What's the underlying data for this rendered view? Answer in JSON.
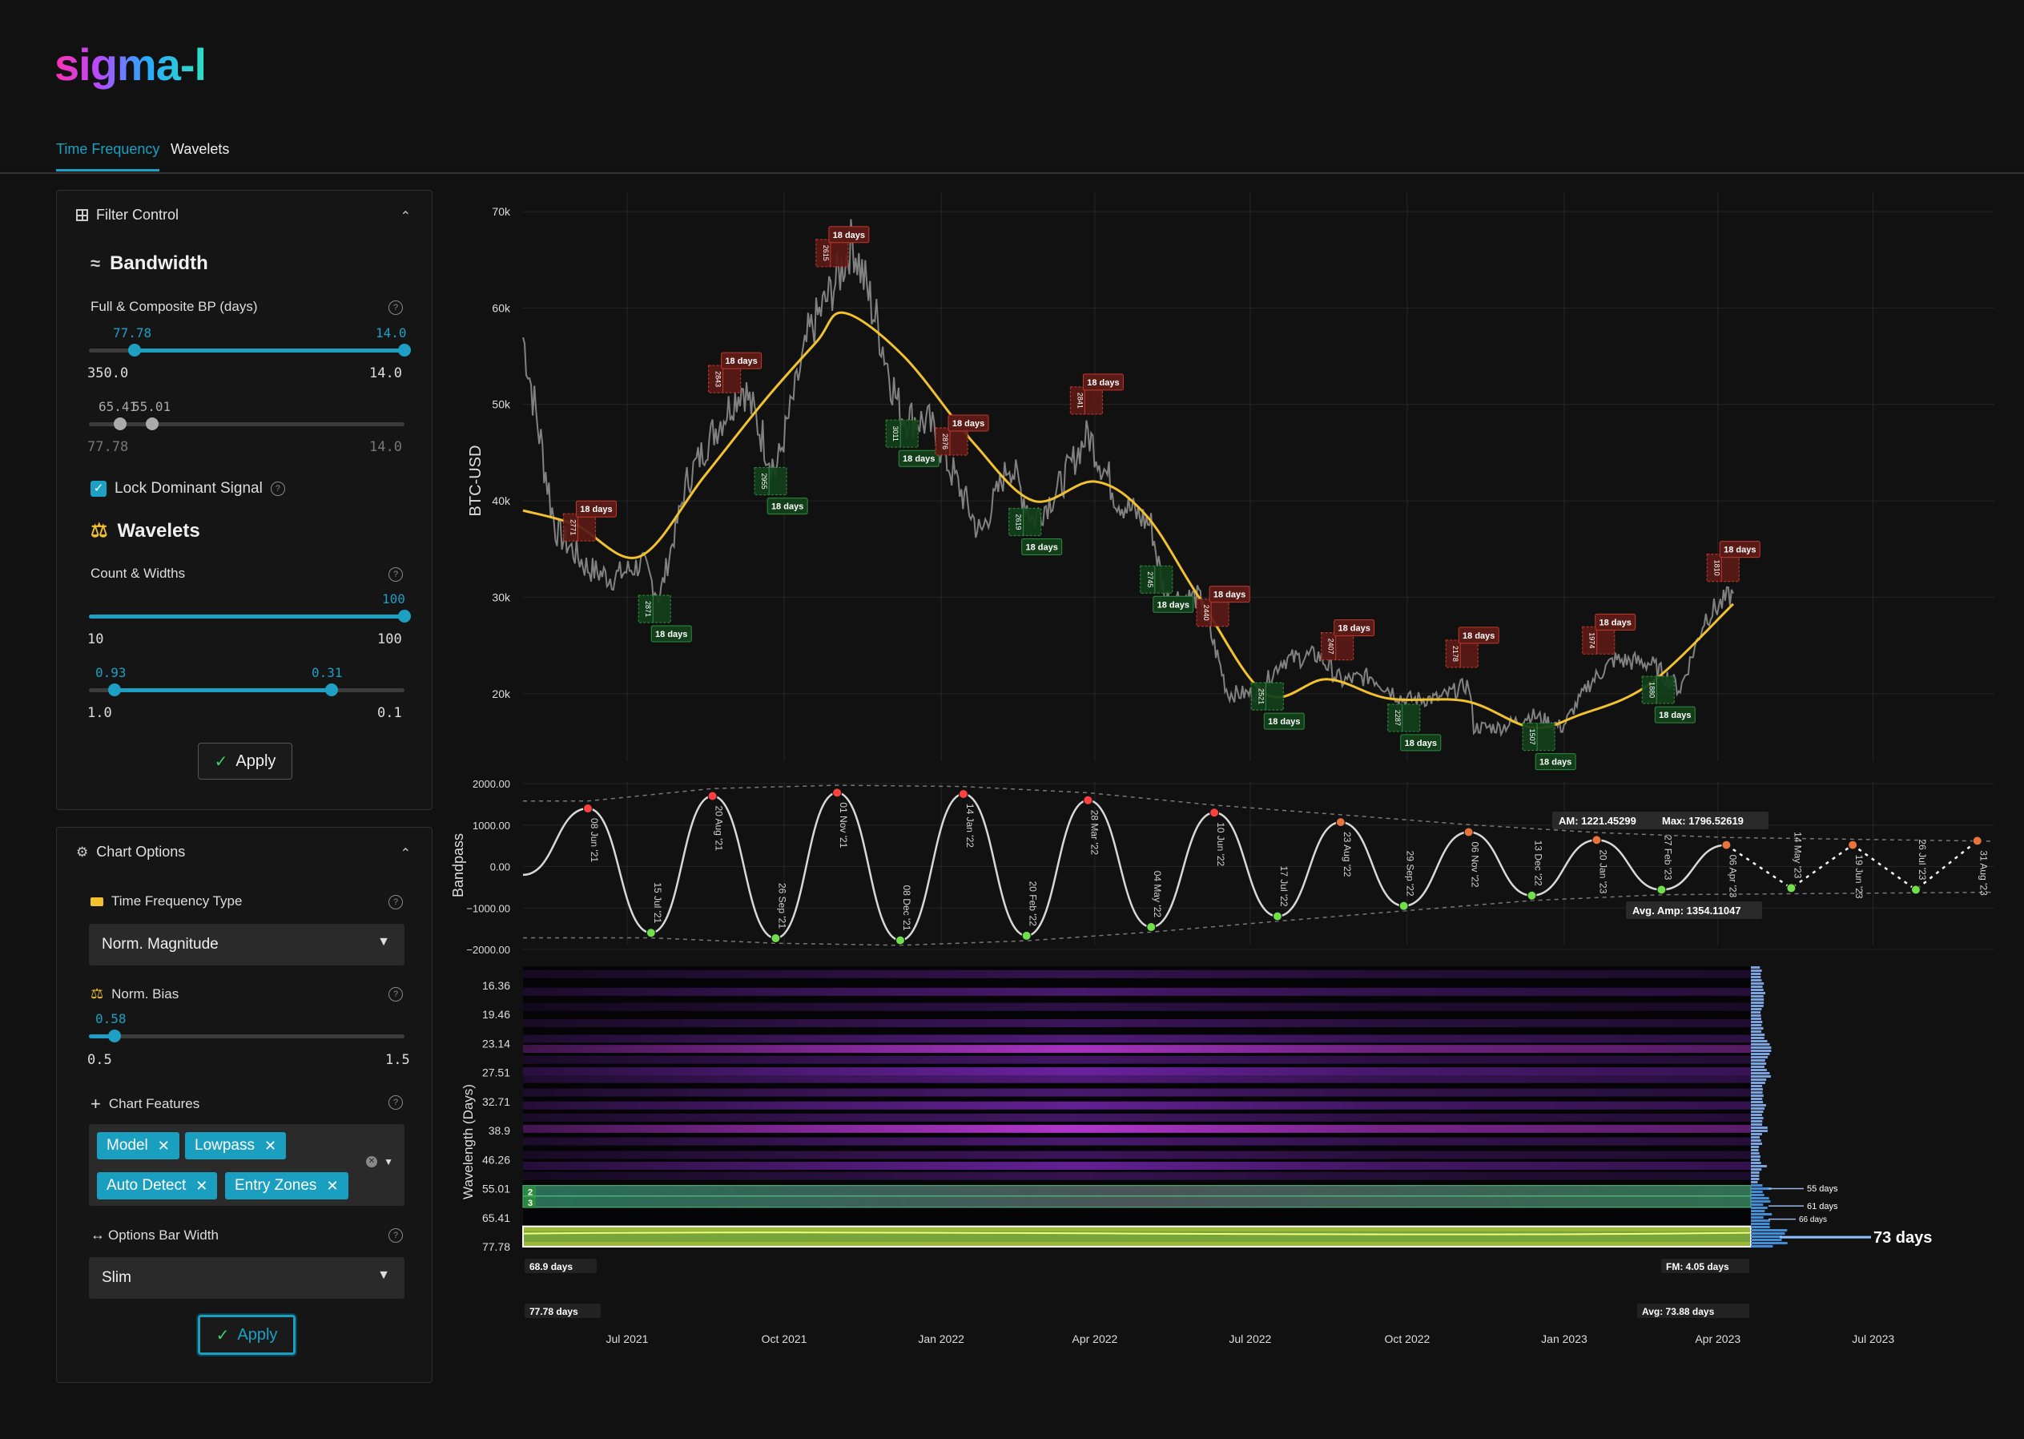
{
  "app": {
    "logo": "sigma-l"
  },
  "tabs": [
    {
      "label": "Time Frequency",
      "active": true
    },
    {
      "label": "Wavelets",
      "active": false
    }
  ],
  "filter_control": {
    "title": "Filter Control",
    "bandwidth": {
      "title": "Bandwidth",
      "label": "Full & Composite BP (days)",
      "slider1": {
        "low_label": "77.78",
        "high_label": "14.0",
        "min": "350.0",
        "max": "14.0",
        "low_fraction": 0.145,
        "high_fraction": 1.0
      },
      "slider2": {
        "low_label": "65.41",
        "high_label": "55.01",
        "min": "77.78",
        "max": "14.0",
        "low_fraction": 0.1,
        "high_fraction": 0.2
      }
    },
    "lock_dominant": {
      "label": "Lock Dominant Signal",
      "checked": true
    },
    "wavelets": {
      "title": "Wavelets",
      "label": "Count & Widths",
      "slider1": {
        "value_label": "100",
        "min": "10",
        "max": "100",
        "fraction": 1.0
      },
      "slider2": {
        "low_label": "0.93",
        "high_label": "0.31",
        "min": "1.0",
        "max": "0.1",
        "low_fraction": 0.08,
        "high_fraction": 0.77
      }
    },
    "apply_label": "Apply"
  },
  "chart_options": {
    "title": "Chart Options",
    "tf_type": {
      "label": "Time Frequency Type",
      "value": "Norm. Magnitude"
    },
    "norm_bias": {
      "label": "Norm. Bias",
      "value_label": "0.58",
      "min": "0.5",
      "max": "1.5",
      "fraction": 0.08
    },
    "features": {
      "label": "Chart Features",
      "chips": [
        "Model",
        "Lowpass",
        "Auto Detect",
        "Entry Zones"
      ]
    },
    "bar_width": {
      "label": "Options Bar Width",
      "value": "Slim"
    },
    "apply_label": "Apply"
  },
  "colors": {
    "accent": "#1da0c3",
    "model_line": "#f2c12e",
    "peak": "#ff4040",
    "trough": "#6fe04a",
    "panel_bg": "#151515"
  },
  "chart_data": [
    {
      "type": "line",
      "ylabel": "BTC-USD",
      "ytick_labels": [
        "70k",
        "60k",
        "50k",
        "40k",
        "30k",
        "20k"
      ],
      "ylim": [
        13000,
        72000
      ],
      "xlim": [
        "2021-05-01",
        "2023-09-10"
      ],
      "price_series": {
        "x": [
          "2021-05-01",
          "2021-05-20",
          "2021-06-08",
          "2021-06-22",
          "2021-07-10",
          "2021-07-20",
          "2021-08-05",
          "2021-08-20",
          "2021-09-07",
          "2021-09-26",
          "2021-10-15",
          "2021-11-01",
          "2021-11-10",
          "2021-11-25",
          "2021-12-08",
          "2021-12-25",
          "2022-01-10",
          "2022-01-24",
          "2022-02-10",
          "2022-02-24",
          "2022-03-10",
          "2022-03-28",
          "2022-04-15",
          "2022-05-04",
          "2022-05-12",
          "2022-06-01",
          "2022-06-10",
          "2022-06-18",
          "2022-07-05",
          "2022-07-20",
          "2022-08-10",
          "2022-08-23",
          "2022-09-10",
          "2022-09-29",
          "2022-10-20",
          "2022-11-06",
          "2022-11-09",
          "2022-11-25",
          "2022-12-13",
          "2022-12-31",
          "2023-01-15",
          "2023-01-30",
          "2023-02-20",
          "2023-03-10",
          "2023-03-25",
          "2023-04-10"
        ],
        "values": [
          57000,
          37000,
          33000,
          32000,
          33500,
          30000,
          42000,
          47000,
          52000,
          43000,
          57000,
          63000,
          67000,
          58000,
          49000,
          48000,
          42000,
          36500,
          44000,
          38000,
          41000,
          47000,
          40000,
          37500,
          30000,
          30000,
          25000,
          20000,
          20000,
          23500,
          24000,
          21300,
          21800,
          19400,
          19500,
          21000,
          16500,
          16500,
          17800,
          16500,
          20900,
          23500,
          23200,
          20500,
          28000,
          30400
        ]
      },
      "model_series": {
        "x": [
          "2021-05-01",
          "2021-06-01",
          "2021-07-08",
          "2021-08-15",
          "2021-09-20",
          "2021-10-20",
          "2021-11-05",
          "2021-12-10",
          "2022-01-20",
          "2022-02-24",
          "2022-04-01",
          "2022-05-01",
          "2022-06-01",
          "2022-07-10",
          "2022-08-15",
          "2022-09-20",
          "2022-11-05",
          "2022-12-13",
          "2023-01-10",
          "2023-02-20",
          "2023-04-10"
        ],
        "values": [
          39000,
          37500,
          34200,
          42500,
          50500,
          56500,
          59500,
          55000,
          46000,
          40000,
          42000,
          38500,
          30000,
          20000,
          21500,
          19500,
          19200,
          16500,
          17800,
          21000,
          29300
        ]
      },
      "entry_zones": [
        {
          "type": "peak",
          "date": "2021-06-04",
          "id": "2771",
          "label": "18 days"
        },
        {
          "type": "trough",
          "date": "2021-07-18",
          "id": "2871",
          "label": "18 days"
        },
        {
          "type": "peak",
          "date": "2021-08-28",
          "id": "2843",
          "label": "18 days"
        },
        {
          "type": "trough",
          "date": "2021-09-24",
          "id": "2955",
          "label": "18 days"
        },
        {
          "type": "peak",
          "date": "2021-10-30",
          "id": "2615",
          "label": "18 days"
        },
        {
          "type": "trough",
          "date": "2021-12-10",
          "id": "3011",
          "label": "18 days"
        },
        {
          "type": "peak",
          "date": "2022-01-08",
          "id": "2876",
          "label": "18 days"
        },
        {
          "type": "trough",
          "date": "2022-02-20",
          "id": "2619",
          "label": "18 days"
        },
        {
          "type": "peak",
          "date": "2022-03-28",
          "id": "2841",
          "label": "18 days"
        },
        {
          "type": "trough",
          "date": "2022-05-08",
          "id": "2745",
          "label": "18 days"
        },
        {
          "type": "peak",
          "date": "2022-06-10",
          "id": "2440",
          "label": "18 days"
        },
        {
          "type": "trough",
          "date": "2022-07-12",
          "id": "2521",
          "label": "18 days"
        },
        {
          "type": "peak",
          "date": "2022-08-22",
          "id": "2407",
          "label": "18 days"
        },
        {
          "type": "trough",
          "date": "2022-09-30",
          "id": "2287",
          "label": "18 days"
        },
        {
          "type": "peak",
          "date": "2022-11-03",
          "id": "2178",
          "label": "18 days"
        },
        {
          "type": "trough",
          "date": "2022-12-18",
          "id": "1507",
          "label": "18 days"
        },
        {
          "type": "peak",
          "date": "2023-01-22",
          "id": "1974",
          "label": "18 days"
        },
        {
          "type": "trough",
          "date": "2023-02-26",
          "id": "1880",
          "label": "18 days"
        },
        {
          "type": "peak",
          "date": "2023-04-05",
          "id": "1810",
          "label": "18 days"
        }
      ]
    },
    {
      "type": "line",
      "ylabel": "Bandpass",
      "ytick_labels": [
        "2000.00",
        "1000.00",
        "0.00",
        "−1000.00",
        "−2000.00"
      ],
      "ylim": [
        -2000,
        2000
      ],
      "cycle_points": [
        {
          "date": "2021-06-08",
          "value": 1400,
          "type": "peak",
          "label": "08 Jun '21"
        },
        {
          "date": "2021-07-15",
          "value": -1600,
          "type": "trough",
          "label": "15 Jul '21"
        },
        {
          "date": "2021-08-20",
          "value": 1700,
          "type": "peak",
          "label": "20 Aug '21"
        },
        {
          "date": "2021-09-26",
          "value": -1730,
          "type": "trough",
          "label": "26 Sep '21"
        },
        {
          "date": "2021-11-01",
          "value": 1780,
          "type": "peak",
          "label": "01 Nov '21"
        },
        {
          "date": "2021-12-08",
          "value": -1780,
          "type": "trough",
          "label": "08 Dec '21"
        },
        {
          "date": "2022-01-14",
          "value": 1750,
          "type": "peak",
          "label": "14 Jan '22"
        },
        {
          "date": "2022-02-20",
          "value": -1670,
          "type": "trough",
          "label": "20 Feb '22"
        },
        {
          "date": "2022-03-28",
          "value": 1600,
          "type": "peak",
          "label": "28 Mar '22"
        },
        {
          "date": "2022-05-04",
          "value": -1460,
          "type": "trough",
          "label": "04 May '22"
        },
        {
          "date": "2022-06-10",
          "value": 1300,
          "type": "peak",
          "label": "10 Jun '22"
        },
        {
          "date": "2022-07-17",
          "value": -1200,
          "type": "trough",
          "label": "17 Jul '22"
        },
        {
          "date": "2022-08-23",
          "value": 1070,
          "type": "peak",
          "label": "23 Aug '22"
        },
        {
          "date": "2022-09-29",
          "value": -950,
          "type": "trough",
          "label": "29 Sep '22"
        },
        {
          "date": "2022-11-06",
          "value": 830,
          "type": "peak",
          "label": "06 Nov '22"
        },
        {
          "date": "2022-12-13",
          "value": -700,
          "type": "trough",
          "label": "13 Dec '22"
        },
        {
          "date": "2023-01-20",
          "value": 640,
          "type": "peak",
          "label": "20 Jan '23"
        },
        {
          "date": "2023-02-27",
          "value": -560,
          "type": "trough",
          "label": "27 Feb '23"
        },
        {
          "date": "2023-04-06",
          "value": 520,
          "type": "peak",
          "label": "06 Apr '23"
        },
        {
          "date": "2023-05-14",
          "value": -520,
          "type": "trough",
          "label": "14 May '23",
          "projected": true
        },
        {
          "date": "2023-06-19",
          "value": 520,
          "type": "peak",
          "label": "19 Jun '23",
          "projected": true
        },
        {
          "date": "2023-07-26",
          "value": -560,
          "type": "trough",
          "label": "26 Jul '23",
          "projected": true
        },
        {
          "date": "2023-08-31",
          "value": 620,
          "type": "peak",
          "label": "31 Aug '23",
          "projected": true
        }
      ],
      "annotations": {
        "am": "AM: 1221.45299",
        "max": "Max: 1796.52619",
        "avg_amp": "Avg. Amp: 1354.11047"
      }
    },
    {
      "type": "heatmap",
      "ylabel": "Wavelength (Days)",
      "ytick_labels": [
        "16.36",
        "19.46",
        "23.14",
        "27.51",
        "32.71",
        "38.9",
        "46.26",
        "55.01",
        "65.41",
        "77.78"
      ],
      "bands": [
        {
          "wavelength": 15.3,
          "intensity": 0.35
        },
        {
          "wavelength": 17.0,
          "intensity": 0.5
        },
        {
          "wavelength": 18.6,
          "intensity": 0.3
        },
        {
          "wavelength": 20.5,
          "intensity": 0.4
        },
        {
          "wavelength": 22.5,
          "intensity": 0.55
        },
        {
          "wavelength": 23.9,
          "intensity": 0.85
        },
        {
          "wavelength": 25.5,
          "intensity": 0.45
        },
        {
          "wavelength": 27.3,
          "intensity": 0.75
        },
        {
          "wavelength": 28.6,
          "intensity": 0.55
        },
        {
          "wavelength": 31.0,
          "intensity": 0.5
        },
        {
          "wavelength": 33.5,
          "intensity": 0.7
        },
        {
          "wavelength": 36.0,
          "intensity": 0.45
        },
        {
          "wavelength": 38.5,
          "intensity": 0.9
        },
        {
          "wavelength": 41.5,
          "intensity": 0.5
        },
        {
          "wavelength": 45.0,
          "intensity": 0.4
        },
        {
          "wavelength": 48.0,
          "intensity": 0.7
        },
        {
          "wavelength": 51.0,
          "intensity": 0.35
        }
      ],
      "selections": [
        {
          "label": "2",
          "from": 54.0,
          "to": 57.5
        },
        {
          "label": "3",
          "from": 57.5,
          "to": 61.5
        }
      ],
      "selection_labels": {
        "top": "68.9 days",
        "fm": "FM: 4.05 days",
        "bottom": "77.78 days",
        "avg": "Avg: 73.88 days"
      },
      "spectrum_labels": [
        "55 days",
        "61 days",
        "66 days",
        "73 days"
      ],
      "xtick_labels": [
        "Jul 2021",
        "Oct 2021",
        "Jan 2022",
        "Apr 2022",
        "Jul 2022",
        "Oct 2022",
        "Jan 2023",
        "Apr 2023",
        "Jul 2023"
      ]
    }
  ]
}
